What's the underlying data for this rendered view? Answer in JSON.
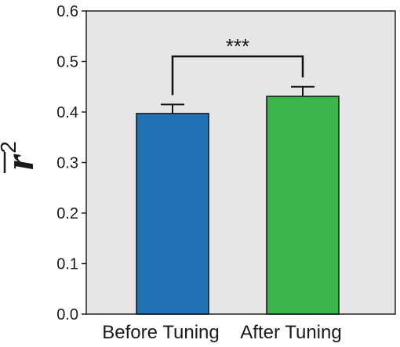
{
  "chart_data": {
    "type": "bar",
    "categories": [
      "Before Tuning",
      "After Tuning"
    ],
    "values": [
      0.397,
      0.431
    ],
    "errors": [
      0.018,
      0.019
    ],
    "colors": [
      "#2271b5",
      "#3cb54a"
    ],
    "ylabel_base": "r",
    "ylabel_sup": "2",
    "ylabel_overline": true,
    "ylim": [
      0,
      0.6
    ],
    "yticks": [
      "0.0",
      "0.1",
      "0.2",
      "0.3",
      "0.4",
      "0.5",
      "0.6"
    ],
    "background": "#e6e6e6",
    "grid": false,
    "significance": "***"
  }
}
